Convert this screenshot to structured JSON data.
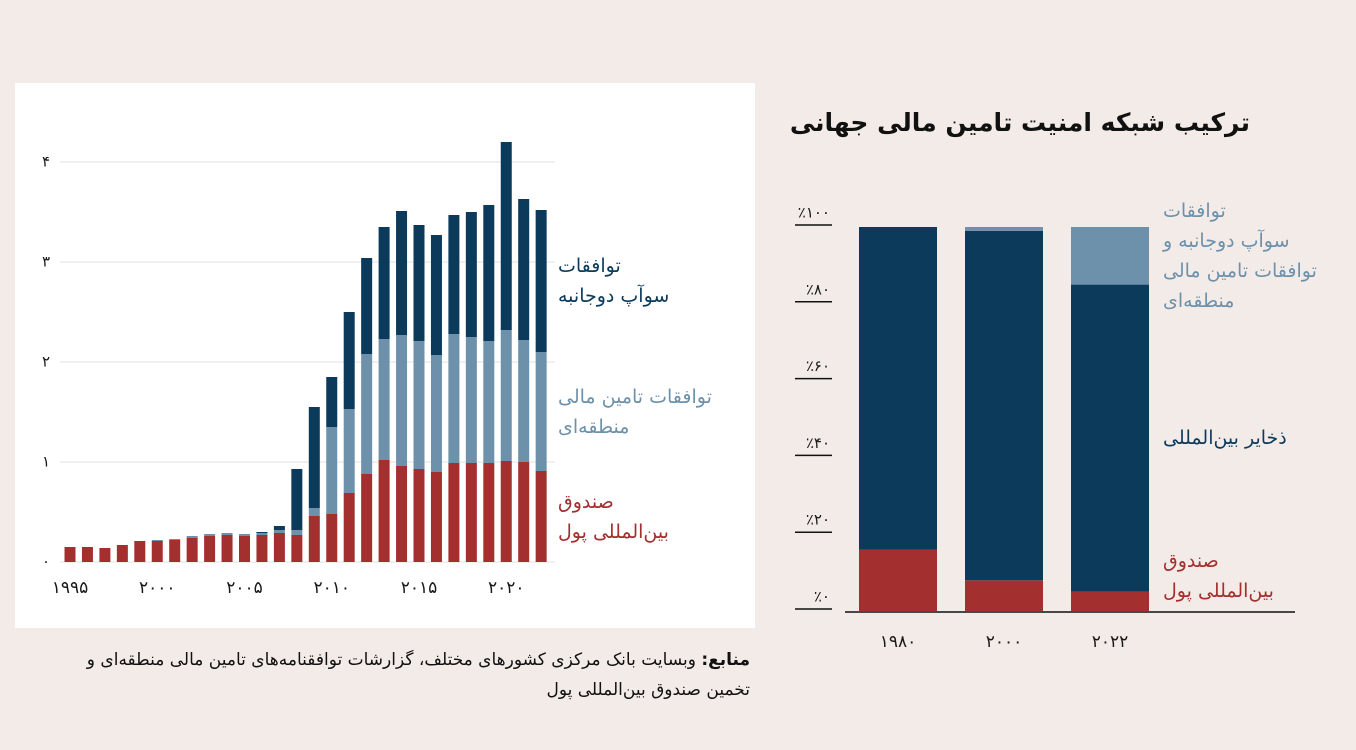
{
  "chart_data": [
    {
      "type": "stacked_bar",
      "categories": [
        "۱۹۹۵",
        null,
        null,
        null,
        null,
        "۲۰۰۰",
        null,
        null,
        null,
        null,
        "۲۰۰۵",
        null,
        null,
        null,
        null,
        "۲۰۱۰",
        null,
        null,
        null,
        null,
        "۲۰۱۵",
        null,
        null,
        null,
        null,
        "۲۰۲۰",
        null,
        null
      ],
      "series": [
        {
          "name": "صندوق\nبین‌المللی پول",
          "color": "#a3302f",
          "values": [
            0.15,
            0.15,
            0.14,
            0.17,
            0.21,
            0.21,
            0.22,
            0.24,
            0.26,
            0.27,
            0.26,
            0.27,
            0.29,
            0.27,
            0.46,
            0.48,
            0.69,
            0.88,
            1.02,
            0.96,
            0.93,
            0.9,
            0.99,
            0.99,
            0.99,
            1.01,
            1.0,
            0.91
          ]
        },
        {
          "name": "توافقات تامین مالی\nمنطقه‌ای",
          "color": "#6e91ab",
          "values": [
            0,
            0,
            0,
            0,
            0,
            0.01,
            0.01,
            0.02,
            0.02,
            0.02,
            0.02,
            0.02,
            0.03,
            0.05,
            0.08,
            0.87,
            0.84,
            1.2,
            1.21,
            1.31,
            1.28,
            1.17,
            1.29,
            1.26,
            1.22,
            1.31,
            1.22,
            1.19
          ]
        },
        {
          "name": "توافقات\nسوآپ دوجانبه",
          "color": "#0c3a5b",
          "values": [
            0,
            0,
            0,
            0,
            0,
            0,
            0,
            0,
            0,
            0,
            0,
            0.01,
            0.04,
            0.61,
            1.01,
            0.5,
            0.97,
            0.96,
            1.12,
            1.24,
            1.16,
            1.2,
            1.19,
            1.25,
            1.36,
            1.88,
            1.41,
            1.42
          ]
        }
      ],
      "ylim": [
        0,
        4.3
      ],
      "yticks": [
        {
          "value": 0,
          "label": "۰"
        },
        {
          "value": 1,
          "label": "۱"
        },
        {
          "value": 2,
          "label": "۲"
        },
        {
          "value": 3,
          "label": "۳"
        },
        {
          "value": 4,
          "label": "۴"
        }
      ],
      "grid": true
    },
    {
      "type": "stacked_bar",
      "title": "ترکیب شبکه امنیت تامین مالی جهانی",
      "categories": [
        "۱۹۸۰",
        "۲۰۰۰",
        "۲۰۲۲"
      ],
      "series": [
        {
          "name": "صندوق\nبین‌المللی پول",
          "color": "#a3302f",
          "values": [
            16,
            8,
            5
          ]
        },
        {
          "name": "ذخایر بین‌المللی",
          "color": "#0c3a5b",
          "values": [
            84,
            91,
            80
          ]
        },
        {
          "name": "توافقات\nسوآپ دوجانبه و\nتوافقات تامین مالی\nمنطقه‌ای",
          "color": "#6e91ab",
          "values": [
            0,
            1,
            15
          ]
        }
      ],
      "ylim": [
        0,
        100
      ],
      "yticks": [
        {
          "value": 0,
          "label": "٪۰"
        },
        {
          "value": 20,
          "label": "٪۲۰"
        },
        {
          "value": 40,
          "label": "٪۴۰"
        },
        {
          "value": 60,
          "label": "٪۶۰"
        },
        {
          "value": 80,
          "label": "٪۸۰"
        },
        {
          "value": 100,
          "label": "٪۱۰۰"
        }
      ],
      "grid": false
    }
  ],
  "source": {
    "label": "منابع:",
    "text": "وبسایت بانک مرکزی کشورهای مختلف، گزارشات توافقنامه‌های تامین مالی منطقه‌ای و تخمین صندوق بین‌المللی پول"
  }
}
